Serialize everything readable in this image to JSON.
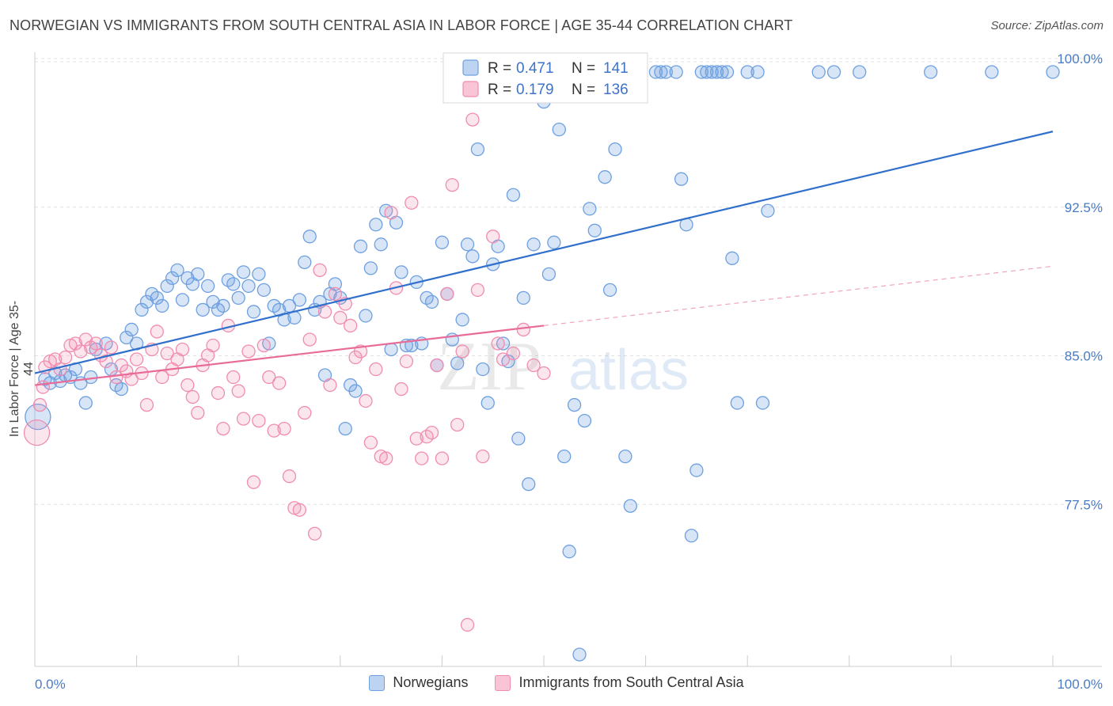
{
  "title": "NORWEGIAN VS IMMIGRANTS FROM SOUTH CENTRAL ASIA IN LABOR FORCE | AGE 35-44 CORRELATION CHART",
  "source": "Source: ZipAtlas.com",
  "watermark": {
    "zip": "ZIP",
    "atlas": "atlas"
  },
  "stats": [
    {
      "r_label": "R =",
      "r_value": "0.471",
      "n_label": "N =",
      "n_value": "141",
      "color": "#6ea0e0"
    },
    {
      "r_label": "R =",
      "r_value": "0.179",
      "n_label": "N =",
      "n_value": "136",
      "color": "#f08cb0"
    }
  ],
  "chart_data": {
    "type": "scatter",
    "ylabel": "In Labor Force | Age 35-44",
    "xlabel": "",
    "xlim": [
      0,
      100
    ],
    "ylim": [
      70.0,
      101.0
    ],
    "x_tick_labels": [
      "0.0%",
      "100.0%"
    ],
    "y_ticks": [
      {
        "value": 100.0,
        "label": "100.0%"
      },
      {
        "value": 92.5,
        "label": "92.5%"
      },
      {
        "value": 85.0,
        "label": "85.0%"
      },
      {
        "value": 77.5,
        "label": "77.5%"
      }
    ],
    "grid": "horizontal-dashed",
    "legend_position": "bottom-center",
    "series": [
      {
        "name": "Norwegians",
        "color": "#6ea0e0",
        "trend": {
          "x": [
            0,
            100
          ],
          "y": [
            84.8,
            97.0
          ]
        },
        "points": [
          [
            0.3,
            82.6
          ],
          [
            1,
            84.5
          ],
          [
            1.5,
            84.3
          ],
          [
            2,
            84.8
          ],
          [
            2.5,
            84.4
          ],
          [
            3,
            84.7
          ],
          [
            3.5,
            84.6
          ],
          [
            4,
            85.0
          ],
          [
            4.5,
            84.3
          ],
          [
            5,
            83.3
          ],
          [
            5.5,
            84.6
          ],
          [
            6,
            86.0
          ],
          [
            7,
            86.3
          ],
          [
            7.5,
            85.0
          ],
          [
            8,
            84.2
          ],
          [
            8.5,
            84.0
          ],
          [
            9,
            86.6
          ],
          [
            9.5,
            87.0
          ],
          [
            10,
            86.3
          ],
          [
            10.5,
            88.0
          ],
          [
            11,
            88.4
          ],
          [
            11.5,
            88.8
          ],
          [
            12,
            88.6
          ],
          [
            12.5,
            88.2
          ],
          [
            13,
            89.2
          ],
          [
            13.5,
            89.6
          ],
          [
            14,
            90.0
          ],
          [
            14.5,
            88.5
          ],
          [
            15,
            89.6
          ],
          [
            15.5,
            89.3
          ],
          [
            16,
            89.8
          ],
          [
            16.5,
            88.0
          ],
          [
            17,
            89.2
          ],
          [
            17.5,
            88.4
          ],
          [
            18,
            88.0
          ],
          [
            18.5,
            88.2
          ],
          [
            19,
            89.5
          ],
          [
            19.5,
            89.3
          ],
          [
            20,
            88.6
          ],
          [
            20.5,
            89.9
          ],
          [
            21,
            89.2
          ],
          [
            21.5,
            87.9
          ],
          [
            22,
            89.8
          ],
          [
            22.5,
            89.0
          ],
          [
            23,
            86.3
          ],
          [
            23.5,
            88.2
          ],
          [
            24,
            88.0
          ],
          [
            24.5,
            87.5
          ],
          [
            25,
            88.2
          ],
          [
            25.5,
            87.6
          ],
          [
            26,
            88.5
          ],
          [
            26.5,
            90.4
          ],
          [
            27,
            91.7
          ],
          [
            27.5,
            88.0
          ],
          [
            28,
            88.4
          ],
          [
            28.5,
            84.7
          ],
          [
            29,
            88.8
          ],
          [
            29.5,
            89.3
          ],
          [
            30,
            88.6
          ],
          [
            30.5,
            82.0
          ],
          [
            31,
            84.2
          ],
          [
            31.5,
            83.9
          ],
          [
            32,
            91.2
          ],
          [
            32.5,
            87.7
          ],
          [
            33,
            90.1
          ],
          [
            33.5,
            92.3
          ],
          [
            34,
            91.3
          ],
          [
            34.5,
            93.0
          ],
          [
            35,
            86.0
          ],
          [
            35.5,
            92.4
          ],
          [
            36,
            89.9
          ],
          [
            36.5,
            86.2
          ],
          [
            37,
            86.2
          ],
          [
            37.5,
            89.4
          ],
          [
            38,
            86.3
          ],
          [
            38.5,
            88.6
          ],
          [
            39,
            88.4
          ],
          [
            39.5,
            85.2
          ],
          [
            40,
            91.4
          ],
          [
            40.5,
            88.8
          ],
          [
            41,
            86.5
          ],
          [
            41.5,
            85.3
          ],
          [
            42,
            87.5
          ],
          [
            42.5,
            91.3
          ],
          [
            43,
            90.7
          ],
          [
            43.5,
            96.1
          ],
          [
            44,
            85.0
          ],
          [
            44.5,
            83.3
          ],
          [
            45,
            90.3
          ],
          [
            45.5,
            91.2
          ],
          [
            46,
            86.3
          ],
          [
            46.5,
            85.4
          ],
          [
            47,
            93.8
          ],
          [
            47.5,
            81.5
          ],
          [
            48,
            88.6
          ],
          [
            48.5,
            79.2
          ],
          [
            49,
            91.3
          ],
          [
            50,
            98.5
          ],
          [
            50.5,
            89.8
          ],
          [
            51,
            91.4
          ],
          [
            51.5,
            97.1
          ],
          [
            52,
            80.6
          ],
          [
            52.5,
            75.8
          ],
          [
            53,
            83.2
          ],
          [
            53.5,
            70.6
          ],
          [
            54,
            82.4
          ],
          [
            54.5,
            93.1
          ],
          [
            55,
            92.0
          ],
          [
            56,
            94.7
          ],
          [
            56.5,
            89.0
          ],
          [
            57,
            96.1
          ],
          [
            58,
            80.6
          ],
          [
            58.5,
            78.1
          ],
          [
            61,
            100.0
          ],
          [
            61.5,
            100.0
          ],
          [
            62,
            100.0
          ],
          [
            63,
            100.0
          ],
          [
            63.5,
            94.6
          ],
          [
            64,
            92.3
          ],
          [
            64.5,
            76.6
          ],
          [
            65,
            79.9
          ],
          [
            65.5,
            100.0
          ],
          [
            66,
            100.0
          ],
          [
            66.5,
            100.0
          ],
          [
            67,
            100.0
          ],
          [
            67.5,
            100.0
          ],
          [
            68,
            100.0
          ],
          [
            68.5,
            90.6
          ],
          [
            69,
            83.3
          ],
          [
            70,
            100.0
          ],
          [
            71,
            100.0
          ],
          [
            71.5,
            83.3
          ],
          [
            72,
            93.0
          ],
          [
            77,
            100.0
          ],
          [
            78.5,
            100.0
          ],
          [
            81,
            100.0
          ],
          [
            88,
            100.0
          ],
          [
            94,
            100.0
          ],
          [
            100,
            100.0
          ]
        ]
      },
      {
        "name": "Immigrants from South Central Asia",
        "color": "#f08cb0",
        "trend": {
          "x": [
            0,
            100
          ],
          "y": [
            84.2,
            90.2
          ],
          "solid_until": 50
        },
        "points": [
          [
            0.2,
            81.8
          ],
          [
            0.5,
            83.2
          ],
          [
            0.8,
            84.1
          ],
          [
            1,
            85.1
          ],
          [
            1.5,
            85.4
          ],
          [
            2,
            85.5
          ],
          [
            2.5,
            85.0
          ],
          [
            3,
            85.6
          ],
          [
            3.5,
            86.2
          ],
          [
            4,
            86.3
          ],
          [
            4.5,
            85.9
          ],
          [
            5,
            86.5
          ],
          [
            5.5,
            86.1
          ],
          [
            6,
            86.3
          ],
          [
            6.5,
            85.7
          ],
          [
            7,
            85.4
          ],
          [
            7.5,
            86.1
          ],
          [
            8,
            84.6
          ],
          [
            8.5,
            85.2
          ],
          [
            9,
            84.9
          ],
          [
            9.5,
            84.5
          ],
          [
            10,
            85.5
          ],
          [
            10.5,
            84.8
          ],
          [
            11,
            83.2
          ],
          [
            11.5,
            86.0
          ],
          [
            12,
            86.9
          ],
          [
            12.5,
            84.6
          ],
          [
            13,
            85.8
          ],
          [
            13.5,
            85.0
          ],
          [
            14,
            85.5
          ],
          [
            14.5,
            86.0
          ],
          [
            15,
            84.2
          ],
          [
            15.5,
            83.6
          ],
          [
            16,
            82.8
          ],
          [
            16.5,
            85.2
          ],
          [
            17,
            85.7
          ],
          [
            17.5,
            86.2
          ],
          [
            18,
            83.8
          ],
          [
            18.5,
            82.0
          ],
          [
            19,
            87.2
          ],
          [
            19.5,
            84.6
          ],
          [
            20,
            83.9
          ],
          [
            20.5,
            82.5
          ],
          [
            21,
            85.9
          ],
          [
            21.5,
            79.3
          ],
          [
            22,
            82.4
          ],
          [
            22.5,
            86.2
          ],
          [
            23,
            84.6
          ],
          [
            23.5,
            81.9
          ],
          [
            24,
            84.3
          ],
          [
            24.5,
            82.0
          ],
          [
            25,
            79.6
          ],
          [
            25.5,
            78.0
          ],
          [
            26,
            77.9
          ],
          [
            26.5,
            82.8
          ],
          [
            27,
            86.5
          ],
          [
            27.5,
            76.7
          ],
          [
            28,
            90.0
          ],
          [
            28.5,
            87.9
          ],
          [
            29,
            84.2
          ],
          [
            29.5,
            88.8
          ],
          [
            30,
            87.6
          ],
          [
            30.5,
            88.3
          ],
          [
            31,
            87.2
          ],
          [
            31.5,
            85.6
          ],
          [
            32,
            85.9
          ],
          [
            32.5,
            83.4
          ],
          [
            33,
            81.3
          ],
          [
            33.5,
            85.0
          ],
          [
            34,
            80.6
          ],
          [
            34.5,
            80.5
          ],
          [
            35,
            92.9
          ],
          [
            35.5,
            89.1
          ],
          [
            36,
            84.0
          ],
          [
            36.5,
            85.4
          ],
          [
            37,
            93.4
          ],
          [
            37.5,
            81.5
          ],
          [
            38,
            80.5
          ],
          [
            38.5,
            81.6
          ],
          [
            39,
            81.8
          ],
          [
            39.5,
            85.2
          ],
          [
            40,
            80.5
          ],
          [
            40.5,
            88.8
          ],
          [
            41,
            94.3
          ],
          [
            41.5,
            82.2
          ],
          [
            42,
            85.9
          ],
          [
            42.5,
            72.1
          ],
          [
            43,
            97.6
          ],
          [
            43.5,
            89.0
          ],
          [
            44,
            80.6
          ],
          [
            44.5,
            100.0
          ],
          [
            45,
            91.7
          ],
          [
            45.5,
            86.3
          ],
          [
            46,
            85.5
          ],
          [
            47,
            85.8
          ],
          [
            48,
            87.0
          ],
          [
            49,
            85.2
          ],
          [
            50,
            84.8
          ]
        ]
      }
    ]
  }
}
